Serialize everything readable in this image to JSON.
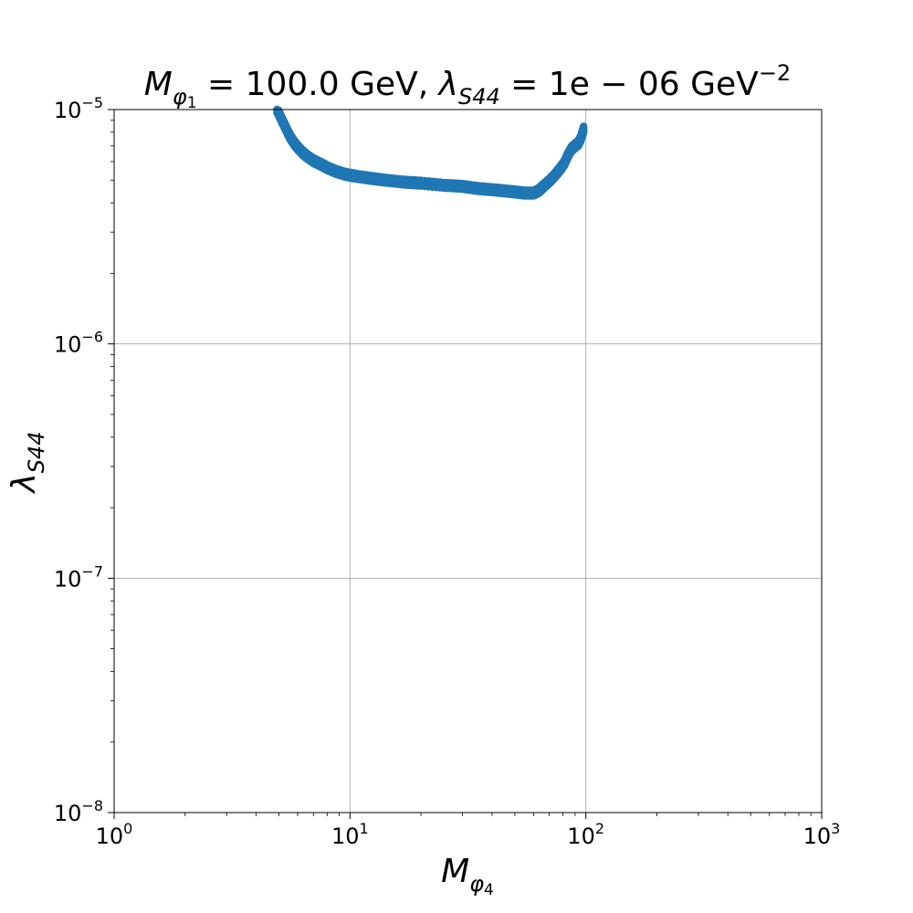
{
  "chart_data": {
    "type": "scatter",
    "title": "M_φ1 = 100.0 GeV, λ_S44 = 1e−06 GeV^−2",
    "title_parts": {
      "m": "M",
      "m_sub": "φ",
      "m_sub_idx": "1",
      "m_value": " = 100.0 GeV, ",
      "lam": "λ",
      "lam_sub": "S44",
      "lam_value": " = 1e − 06 GeV",
      "lam_exp": "−2"
    },
    "xlabel": {
      "main": "M",
      "sub": "φ",
      "sub_idx": "4"
    },
    "ylabel": {
      "main": "λ",
      "sub": "S44"
    },
    "xscale": "log",
    "yscale": "log",
    "xlim": [
      1,
      1000
    ],
    "ylim": [
      1e-08,
      1e-05
    ],
    "grid": true,
    "marker_color": "#1f77b4",
    "x_ticks": [
      {
        "value": 1,
        "base": "10",
        "exp": "0"
      },
      {
        "value": 10,
        "base": "10",
        "exp": "1"
      },
      {
        "value": 100,
        "base": "10",
        "exp": "2"
      },
      {
        "value": 1000,
        "base": "10",
        "exp": "3"
      }
    ],
    "y_ticks": [
      {
        "value": 1e-08,
        "base": "10",
        "exp": "−8"
      },
      {
        "value": 1e-07,
        "base": "10",
        "exp": "−7"
      },
      {
        "value": 1e-06,
        "base": "10",
        "exp": "−6"
      },
      {
        "value": 1e-05,
        "base": "10",
        "exp": "−5"
      }
    ],
    "curve": [
      [
        4.9,
        1e-05
      ],
      [
        5.0,
        9.6e-06
      ],
      [
        5.15,
        9e-06
      ],
      [
        5.3,
        8.5e-06
      ],
      [
        5.45,
        8e-06
      ],
      [
        5.6,
        7.6e-06
      ],
      [
        5.8,
        7.2e-06
      ],
      [
        6.0,
        6.9e-06
      ],
      [
        6.3,
        6.55e-06
      ],
      [
        6.6,
        6.3e-06
      ],
      [
        7.0,
        6.05e-06
      ],
      [
        7.5,
        5.85e-06
      ],
      [
        8.0,
        5.65e-06
      ],
      [
        8.7,
        5.45e-06
      ],
      [
        9.5,
        5.3e-06
      ],
      [
        10.5,
        5.2e-06
      ],
      [
        12.0,
        5.1e-06
      ],
      [
        14.0,
        5e-06
      ],
      [
        17.0,
        4.9e-06
      ],
      [
        20.0,
        4.85e-06
      ],
      [
        25.0,
        4.75e-06
      ],
      [
        30.0,
        4.7e-06
      ],
      [
        35.0,
        4.6e-06
      ],
      [
        40.0,
        4.55e-06
      ],
      [
        45.0,
        4.5e-06
      ],
      [
        50.0,
        4.45e-06
      ],
      [
        55.0,
        4.4e-06
      ],
      [
        60.0,
        4.4e-06
      ],
      [
        63.0,
        4.5e-06
      ],
      [
        66.0,
        4.7e-06
      ],
      [
        70.0,
        4.95e-06
      ],
      [
        74.0,
        5.25e-06
      ],
      [
        78.0,
        5.6e-06
      ],
      [
        81.0,
        5.9e-06
      ],
      [
        84.0,
        6.4e-06
      ],
      [
        87.0,
        6.8e-06
      ],
      [
        90.0,
        7e-06
      ],
      [
        93.0,
        7.2e-06
      ],
      [
        95.0,
        7.5e-06
      ],
      [
        97.0,
        8e-06
      ],
      [
        98.0,
        8.3e-06
      ]
    ]
  }
}
